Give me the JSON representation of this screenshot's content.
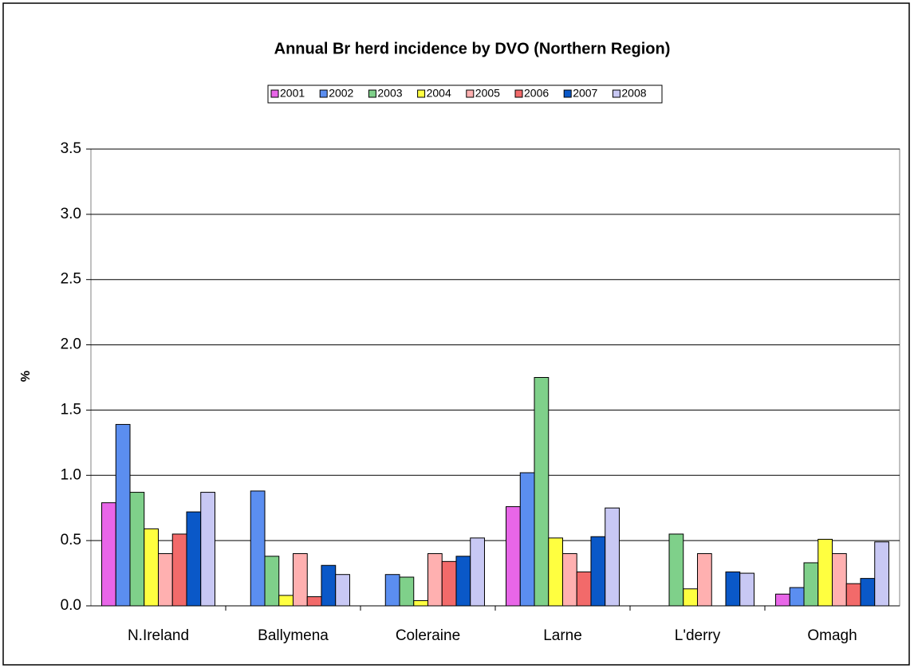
{
  "chart_data": {
    "type": "bar",
    "title": "Annual Br herd incidence by DVO (Northern Region)",
    "y_label": "%",
    "categories": [
      "N.Ireland",
      "Ballymena",
      "Coleraine",
      "Larne",
      "L'derry",
      "Omagh"
    ],
    "series": [
      {
        "name": "2001",
        "color": "#e866e8",
        "values": [
          0.79,
          0,
          0,
          0.76,
          0,
          0.09
        ]
      },
      {
        "name": "2002",
        "color": "#5b8ef0",
        "values": [
          1.39,
          0.88,
          0.24,
          1.02,
          0,
          0.14
        ]
      },
      {
        "name": "2003",
        "color": "#7fd08a",
        "values": [
          0.87,
          0.38,
          0.22,
          1.75,
          0.55,
          0.33
        ]
      },
      {
        "name": "2004",
        "color": "#ffff40",
        "values": [
          0.59,
          0.08,
          0.04,
          0.52,
          0.13,
          0.51
        ]
      },
      {
        "name": "2005",
        "color": "#ffb0b0",
        "values": [
          0.4,
          0.4,
          0.4,
          0.4,
          0.4,
          0.4
        ]
      },
      {
        "name": "2006",
        "color": "#f26a6a",
        "values": [
          0.55,
          0.07,
          0.34,
          0.26,
          0,
          0.17
        ]
      },
      {
        "name": "2007",
        "color": "#0a58c8",
        "values": [
          0.72,
          0.31,
          0.38,
          0.53,
          0.26,
          0.21
        ]
      },
      {
        "name": "2008",
        "color": "#c8c8f4",
        "values": [
          0.87,
          0.24,
          0.52,
          0.75,
          0.25,
          0.49
        ]
      }
    ],
    "ylim": [
      0,
      3.5
    ],
    "yticks": [
      {
        "value": 0,
        "label": "0.0"
      },
      0.5,
      {
        "value": 1,
        "label": "1.0"
      },
      1.5,
      {
        "value": 2,
        "label": "2.0"
      },
      2.5,
      {
        "value": 3,
        "label": "3.0"
      },
      3.5
    ],
    "grid": true
  }
}
